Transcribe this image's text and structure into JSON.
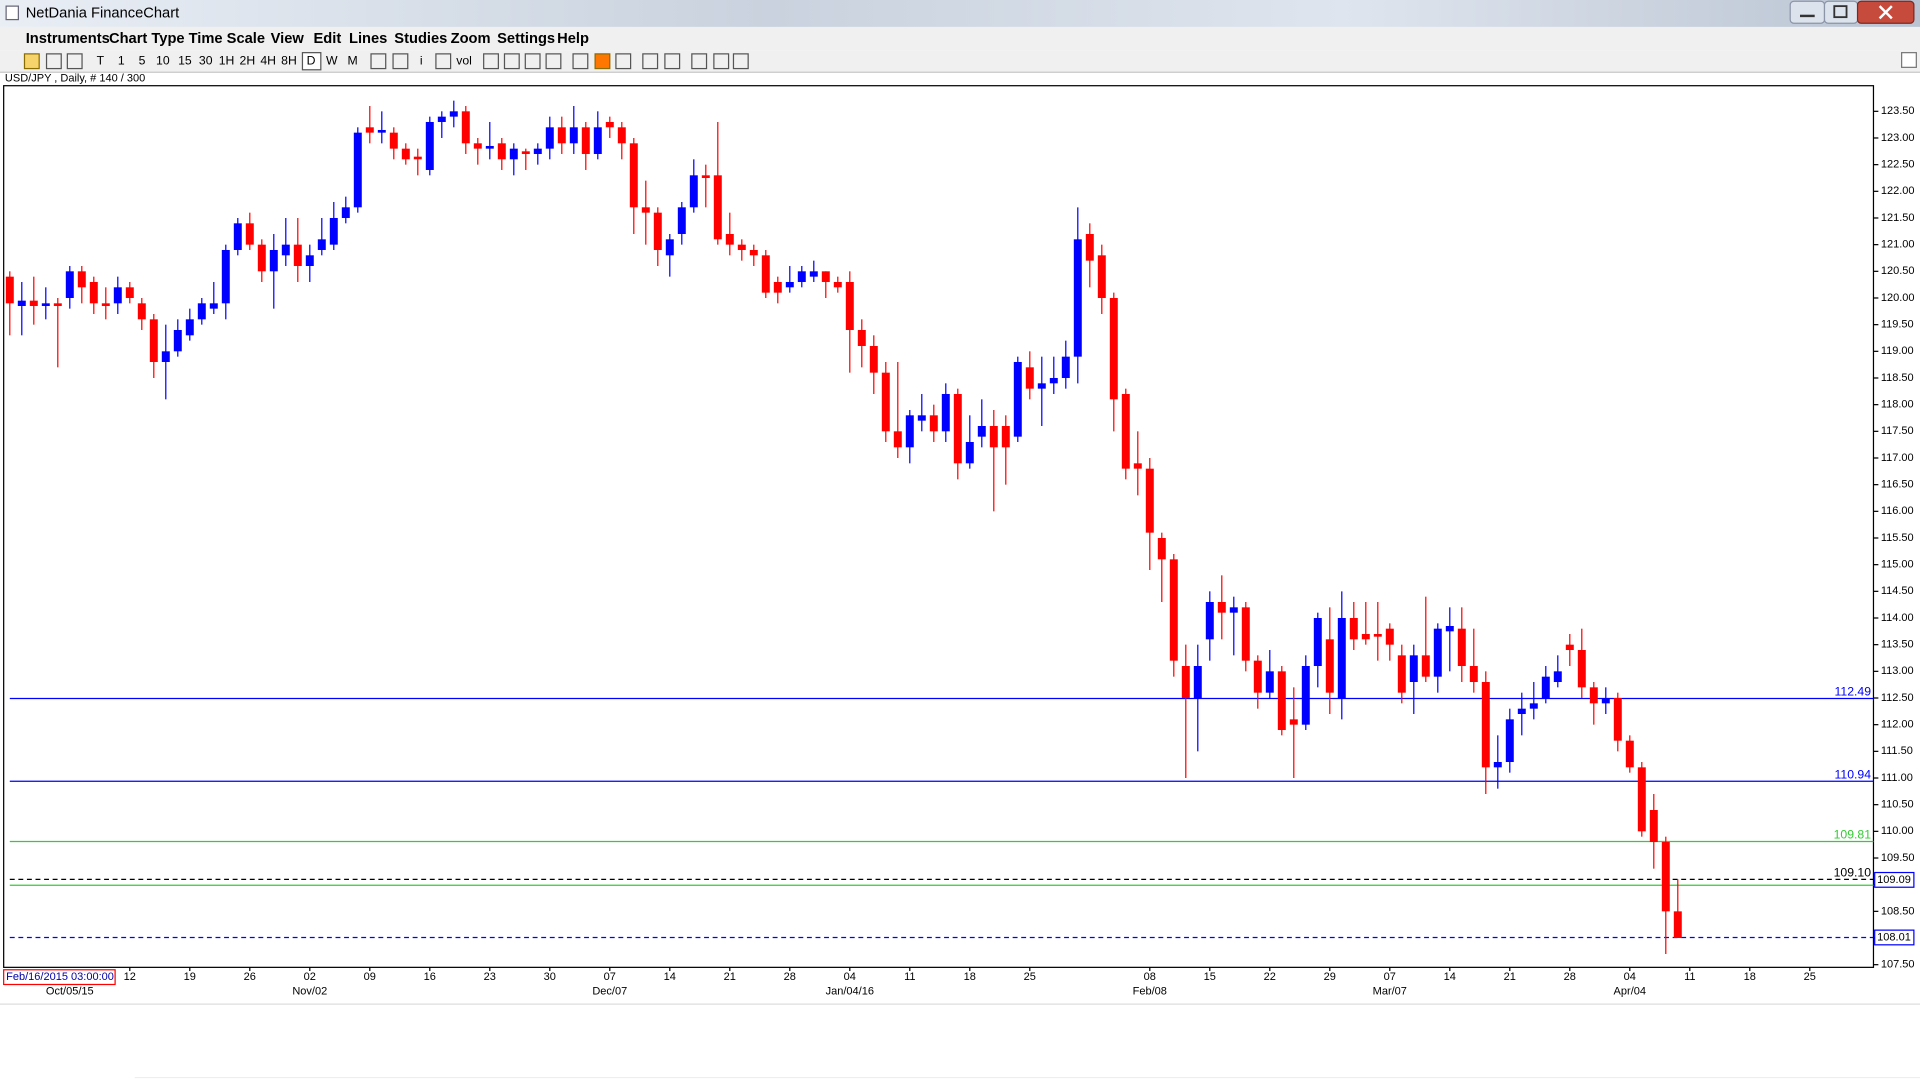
{
  "window": {
    "title": "NetDania FinanceChart",
    "menu": [
      "Instruments",
      "Chart Type",
      "Time Scale",
      "View",
      "Edit",
      "Lines",
      "Studies",
      "Zoom",
      "Settings",
      "Help"
    ],
    "toolbar": [
      "T",
      "1",
      "5",
      "10",
      "15",
      "30",
      "1H",
      "2H",
      "4H",
      "8H",
      "D",
      "W",
      "M",
      "i",
      "vol"
    ]
  },
  "chart_data": {
    "type": "candlestick",
    "title": "USD/JPY , Daily, # 140 / 300",
    "cursor_label": "Feb/16/2015 03:00:00",
    "categories": [
      null,
      null,
      null,
      null,
      null,
      null,
      null,
      null,
      null,
      null,
      "12",
      null,
      null,
      null,
      null,
      "19",
      null,
      null,
      null,
      null,
      "26",
      null,
      null,
      null,
      null,
      "02",
      null,
      null,
      null,
      null,
      "09",
      null,
      null,
      null,
      null,
      "16",
      null,
      null,
      null,
      null,
      "23",
      null,
      null,
      null,
      null,
      "30",
      null,
      null,
      null,
      null,
      "07",
      null,
      null,
      null,
      null,
      "14",
      null,
      null,
      null,
      null,
      "21",
      null,
      null,
      null,
      null,
      "28",
      null,
      null,
      null,
      null,
      "04",
      null,
      null,
      null,
      null,
      "11",
      null,
      null,
      null,
      null,
      "18",
      null,
      null,
      null,
      null,
      "25",
      null,
      null,
      null,
      null,
      null,
      null,
      null,
      null,
      null,
      "08",
      null,
      null,
      null,
      null,
      "15",
      null,
      null,
      null,
      null,
      "22",
      null,
      null,
      null,
      null,
      "29",
      null,
      null,
      null,
      null,
      "07",
      null,
      null,
      null,
      null,
      "14",
      null,
      null,
      null,
      null,
      "21",
      null,
      null,
      null,
      null,
      "28",
      null,
      null,
      null,
      null,
      "04",
      null,
      null,
      null,
      null,
      "11",
      null,
      null,
      null,
      null,
      "18",
      null,
      null,
      null,
      null,
      "25"
    ],
    "category_sublabels": [
      null,
      null,
      null,
      null,
      null,
      "Oct/05/15",
      null,
      null,
      null,
      null,
      null,
      null,
      null,
      null,
      null,
      null,
      null,
      null,
      null,
      null,
      null,
      null,
      null,
      null,
      null,
      "Nov/02",
      null,
      null,
      null,
      null,
      null,
      null,
      null,
      null,
      null,
      null,
      null,
      null,
      null,
      null,
      null,
      null,
      null,
      null,
      null,
      null,
      null,
      null,
      null,
      null,
      "Dec/07",
      null,
      null,
      null,
      null,
      null,
      null,
      null,
      null,
      null,
      null,
      null,
      null,
      null,
      null,
      null,
      null,
      null,
      null,
      null,
      "Jan/04/16",
      null,
      null,
      null,
      null,
      null,
      null,
      null,
      null,
      null,
      null,
      null,
      null,
      null,
      null,
      null,
      null,
      null,
      null,
      null,
      null,
      null,
      null,
      null,
      null,
      "Feb/08",
      null,
      null,
      null,
      null,
      null,
      null,
      null,
      null,
      null,
      null,
      null,
      null,
      null,
      null,
      null,
      null,
      null,
      null,
      null,
      "Mar/07",
      null,
      null,
      null,
      null,
      null,
      null,
      null,
      null,
      null,
      null,
      null,
      null,
      null,
      null,
      null,
      null,
      null,
      null,
      null,
      "Apr/04",
      null,
      null,
      null,
      null,
      null,
      null,
      null,
      null,
      null,
      null,
      null,
      null,
      null,
      null,
      null
    ],
    "open": [
      120.4,
      119.85,
      119.95,
      119.85,
      119.9,
      120.0,
      120.5,
      120.3,
      119.9,
      119.9,
      120.2,
      119.9,
      119.6,
      118.8,
      119.0,
      119.3,
      119.6,
      119.8,
      119.9,
      120.9,
      121.4,
      121.0,
      120.5,
      120.8,
      121.0,
      120.6,
      120.9,
      121.0,
      121.5,
      121.7,
      123.2,
      123.1,
      123.1,
      122.8,
      122.65,
      122.4,
      123.3,
      123.4,
      123.5,
      122.9,
      122.8,
      122.9,
      122.6,
      122.75,
      122.7,
      122.8,
      123.2,
      122.9,
      123.2,
      122.7,
      123.3,
      123.2,
      122.9,
      121.7,
      121.6,
      120.8,
      121.2,
      121.7,
      122.3,
      122.3,
      121.2,
      121.0,
      120.9,
      120.8,
      120.3,
      120.2,
      120.3,
      120.4,
      120.5,
      120.3,
      120.3,
      119.4,
      119.1,
      118.6,
      117.5,
      117.2,
      117.7,
      117.8,
      117.5,
      118.2,
      116.9,
      117.4,
      117.6,
      117.6,
      117.4,
      118.7,
      118.3,
      118.4,
      118.5,
      118.9,
      121.2,
      120.8,
      120.0,
      118.2,
      116.9,
      116.8,
      115.5,
      115.1,
      113.1,
      112.5,
      113.6,
      114.3,
      114.1,
      114.2,
      113.2,
      112.6,
      113.0,
      112.1,
      112.0,
      113.1,
      113.6,
      112.5,
      114.0,
      113.7,
      113.7,
      113.8,
      113.3,
      112.8,
      113.3,
      112.9,
      113.75,
      113.8,
      113.1,
      112.8,
      111.2,
      111.3,
      112.2,
      112.3,
      112.5,
      112.8,
      113.5,
      113.4,
      112.7,
      112.4,
      112.5,
      111.7,
      111.2,
      110.4,
      109.8,
      108.5,
      null,
      null,
      null,
      null,
      null,
      null,
      null,
      null,
      null,
      null,
      null
    ],
    "high": [
      120.5,
      120.3,
      120.4,
      120.2,
      120.0,
      120.6,
      120.6,
      120.4,
      120.2,
      120.4,
      120.3,
      120.0,
      119.7,
      119.5,
      119.6,
      119.8,
      120.0,
      120.3,
      121.0,
      121.5,
      121.6,
      121.1,
      121.2,
      121.5,
      121.5,
      121.0,
      121.5,
      121.8,
      121.9,
      123.2,
      123.6,
      123.5,
      123.2,
      122.9,
      122.8,
      123.4,
      123.5,
      123.7,
      123.6,
      123.0,
      123.3,
      123.0,
      122.9,
      122.8,
      122.9,
      123.4,
      123.4,
      123.6,
      123.3,
      123.5,
      123.4,
      123.3,
      123.0,
      122.2,
      121.7,
      121.2,
      121.8,
      122.6,
      122.5,
      123.3,
      121.6,
      121.1,
      121.0,
      120.9,
      120.4,
      120.6,
      120.6,
      120.7,
      120.5,
      120.4,
      120.5,
      119.6,
      119.3,
      118.8,
      118.8,
      117.9,
      118.2,
      118.0,
      118.4,
      118.3,
      117.8,
      118.1,
      117.9,
      117.8,
      118.9,
      119.0,
      118.9,
      118.9,
      119.2,
      121.7,
      121.4,
      121.0,
      120.1,
      118.3,
      117.5,
      117.0,
      115.6,
      115.2,
      113.5,
      113.5,
      114.5,
      114.8,
      114.4,
      114.3,
      113.3,
      113.4,
      113.1,
      112.7,
      113.3,
      114.1,
      114.2,
      114.5,
      114.3,
      114.3,
      114.3,
      113.9,
      113.5,
      113.5,
      114.4,
      113.9,
      114.2,
      114.2,
      113.8,
      113.0,
      111.8,
      112.3,
      112.6,
      112.8,
      113.1,
      113.3,
      113.7,
      113.8,
      112.8,
      112.7,
      112.6,
      111.8,
      111.3,
      110.7,
      109.9,
      109.1,
      null,
      null,
      null,
      null,
      null,
      null,
      null,
      null,
      null,
      null,
      null
    ],
    "low": [
      119.3,
      119.3,
      119.5,
      119.6,
      118.7,
      119.8,
      119.9,
      119.7,
      119.6,
      119.7,
      119.9,
      119.4,
      118.5,
      118.1,
      118.9,
      119.2,
      119.5,
      119.7,
      119.6,
      120.8,
      120.9,
      120.3,
      119.8,
      120.6,
      120.3,
      120.3,
      120.8,
      120.9,
      121.4,
      121.6,
      122.9,
      122.9,
      122.6,
      122.5,
      122.3,
      122.3,
      123.0,
      123.2,
      122.7,
      122.5,
      122.6,
      122.4,
      122.3,
      122.4,
      122.5,
      122.6,
      122.7,
      122.7,
      122.4,
      122.6,
      123.0,
      122.6,
      121.2,
      121.0,
      120.6,
      120.4,
      121.0,
      121.6,
      121.7,
      121.0,
      120.8,
      120.7,
      120.6,
      120.0,
      119.9,
      120.1,
      120.2,
      120.3,
      120.0,
      120.1,
      118.6,
      118.7,
      118.2,
      117.3,
      117.0,
      116.9,
      117.5,
      117.3,
      117.3,
      116.6,
      116.8,
      117.2,
      116.0,
      116.5,
      117.3,
      118.1,
      117.6,
      118.2,
      118.3,
      118.4,
      120.2,
      119.7,
      117.5,
      116.6,
      116.3,
      114.9,
      114.3,
      112.9,
      111.0,
      111.5,
      113.2,
      113.6,
      113.3,
      113.0,
      112.3,
      112.5,
      111.8,
      111.0,
      111.9,
      112.7,
      112.2,
      112.1,
      113.4,
      113.5,
      113.2,
      113.2,
      112.4,
      112.2,
      112.8,
      112.6,
      113.0,
      112.8,
      112.6,
      110.7,
      110.8,
      111.1,
      111.8,
      112.1,
      112.4,
      112.7,
      113.1,
      112.5,
      112.0,
      112.2,
      111.5,
      111.1,
      109.9,
      109.3,
      107.7,
      108.0,
      null,
      null,
      null,
      null,
      null,
      null,
      null,
      null,
      null,
      null,
      null
    ],
    "close": [
      119.9,
      119.95,
      119.85,
      119.9,
      119.85,
      120.5,
      120.2,
      119.9,
      119.85,
      120.2,
      120.0,
      119.6,
      118.8,
      119.0,
      119.4,
      119.6,
      119.9,
      119.9,
      120.9,
      121.4,
      121.0,
      120.5,
      120.9,
      121.0,
      120.6,
      120.8,
      121.1,
      121.5,
      121.7,
      123.1,
      123.1,
      123.15,
      122.8,
      122.6,
      122.6,
      123.3,
      123.4,
      123.5,
      122.9,
      122.8,
      122.85,
      122.6,
      122.8,
      122.7,
      122.8,
      123.2,
      122.9,
      123.2,
      122.7,
      123.2,
      123.2,
      122.9,
      121.7,
      121.6,
      120.9,
      121.1,
      121.7,
      122.3,
      122.25,
      121.1,
      121.0,
      120.9,
      120.8,
      120.1,
      120.1,
      120.3,
      120.5,
      120.5,
      120.3,
      120.2,
      119.4,
      119.1,
      118.6,
      117.5,
      117.2,
      117.8,
      117.8,
      117.5,
      118.2,
      116.9,
      117.3,
      117.6,
      117.2,
      117.2,
      118.8,
      118.3,
      118.4,
      118.5,
      118.9,
      121.1,
      120.7,
      120.0,
      118.1,
      116.8,
      116.8,
      115.6,
      115.1,
      113.2,
      112.5,
      113.1,
      114.3,
      114.1,
      114.2,
      113.2,
      112.6,
      113.0,
      111.9,
      112.0,
      113.1,
      114.0,
      112.6,
      114.0,
      113.6,
      113.6,
      113.65,
      113.5,
      112.6,
      113.3,
      112.9,
      113.8,
      113.85,
      113.1,
      112.8,
      111.2,
      111.3,
      112.1,
      112.3,
      112.4,
      112.9,
      113.0,
      113.4,
      112.7,
      112.4,
      112.5,
      111.7,
      111.2,
      110.0,
      109.8,
      108.5,
      108.0,
      null,
      null,
      null,
      null,
      null,
      null,
      null,
      null,
      null,
      null,
      null
    ],
    "up_color": "#0000ff",
    "down_color": "#ff0000",
    "ylim": [
      107.45,
      123.98
    ],
    "yticks": [
      {
        "value": 107.5,
        "label": "107.50"
      },
      {
        "value": 108,
        "label": "108.00"
      },
      {
        "value": 108.5,
        "label": "108.50"
      },
      {
        "value": 109,
        "label": "109.00"
      },
      {
        "value": 109.5,
        "label": "109.50"
      },
      {
        "value": 110,
        "label": "110.00"
      },
      {
        "value": 110.5,
        "label": "110.50"
      },
      {
        "value": 111,
        "label": "111.00"
      },
      {
        "value": 111.5,
        "label": "111.50"
      },
      {
        "value": 112,
        "label": "112.00"
      },
      {
        "value": 112.5,
        "label": "112.50"
      },
      {
        "value": 113,
        "label": "113.00"
      },
      {
        "value": 113.5,
        "label": "113.50"
      },
      {
        "value": 114,
        "label": "114.00"
      },
      {
        "value": 114.5,
        "label": "114.50"
      },
      {
        "value": 115,
        "label": "115.00"
      },
      {
        "value": 115.5,
        "label": "115.50"
      },
      {
        "value": 116,
        "label": "116.00"
      },
      {
        "value": 116.5,
        "label": "116.50"
      },
      {
        "value": 117,
        "label": "117.00"
      },
      {
        "value": 117.5,
        "label": "117.50"
      },
      {
        "value": 118,
        "label": "118.00"
      },
      {
        "value": 118.5,
        "label": "118.50"
      },
      {
        "value": 119,
        "label": "119.00"
      },
      {
        "value": 119.5,
        "label": "119.50"
      },
      {
        "value": 120,
        "label": "120.00"
      },
      {
        "value": 120.5,
        "label": "120.50"
      },
      {
        "value": 121,
        "label": "121.00"
      },
      {
        "value": 121.5,
        "label": "121.50"
      },
      {
        "value": 122,
        "label": "122.00"
      },
      {
        "value": 122.5,
        "label": "122.50"
      },
      {
        "value": 123,
        "label": "123.00"
      },
      {
        "value": 123.5,
        "label": "123.50"
      }
    ],
    "hlines": [
      {
        "value": 112.49,
        "label": "112.49",
        "color": "#0000ff",
        "dashed": false
      },
      {
        "value": 110.94,
        "label": "110.94",
        "color": "#0000ff",
        "dashed": false
      },
      {
        "value": 109.81,
        "label": "109.81",
        "color": "#33cc33",
        "dashed": false
      },
      {
        "value": 108.99,
        "color": "#33cc33",
        "dashed": false
      },
      {
        "value": 109.1,
        "label": "109.10",
        "color": "#000000",
        "dashed": true
      },
      {
        "value": 108.01,
        "label": "108.01",
        "color": "#0000ff",
        "dashed": true,
        "boxed": true
      }
    ],
    "price_tag": {
      "value": 109.09,
      "label": "109.09",
      "color": "#0000ff"
    }
  }
}
